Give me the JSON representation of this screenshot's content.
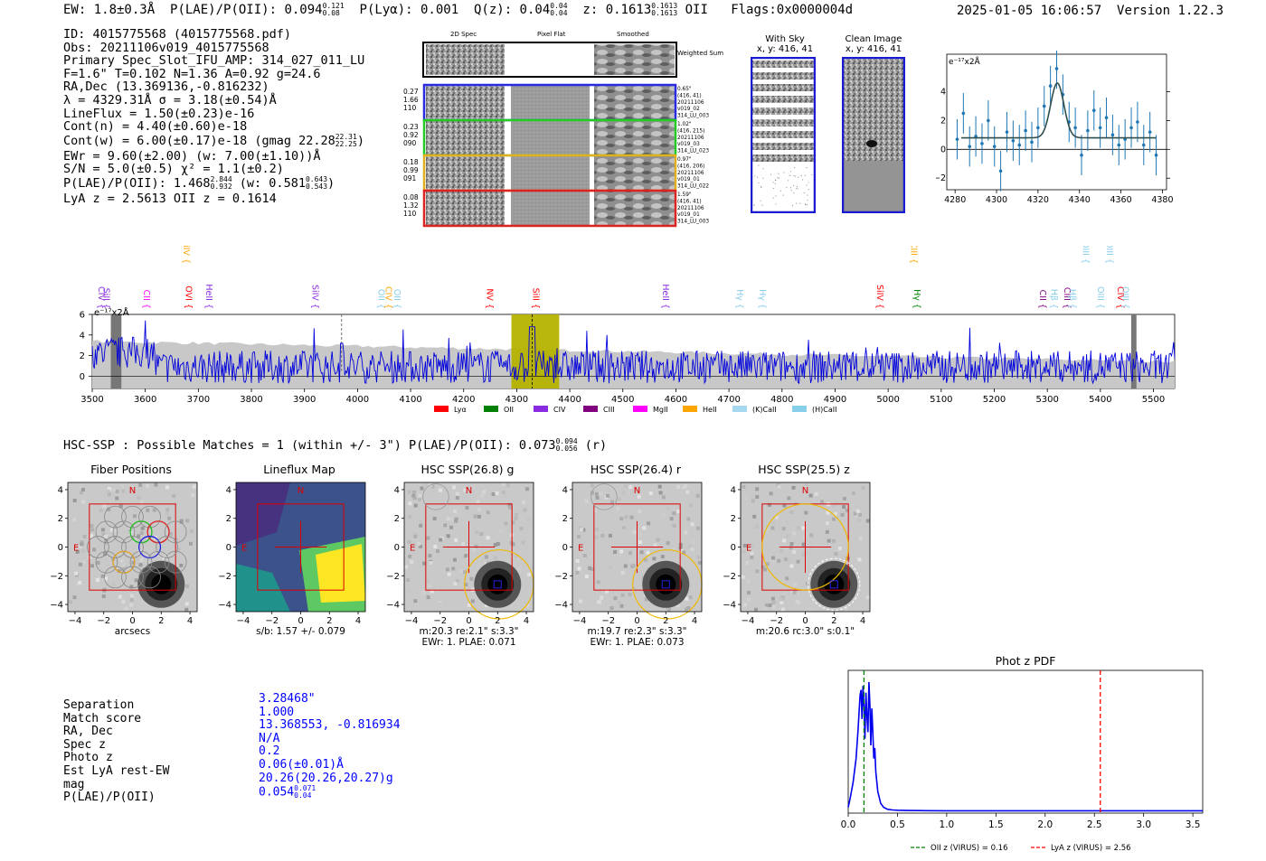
{
  "header": {
    "ew": "EW: 1.8±0.3Å",
    "plae_label": "P(LAE)/P(OII): 0.094",
    "plae_hi": "0.121",
    "plae_lo": "0.08",
    "plya": "P(Lyα): 0.001",
    "qz_label": "Q(z): 0.04",
    "qz_hi": "0.04",
    "qz_lo": "0.04",
    "z_label": "z: 0.1613",
    "z_hi": "0.1613",
    "z_lo": "0.1613",
    "z_line": "OII",
    "flags": "Flags:0x0000004d",
    "timestamp": "2025-01-05 16:06:57",
    "version": "Version 1.22.3"
  },
  "info": {
    "id": "ID: 4015775568 (4015775568.pdf)",
    "obs": "Obs: 20211106v019_4015775568",
    "primary": "Primary Spec_Slot_IFU_AMP: 314_027_011_LU",
    "params": "F=1.6\"  T=0.102  N=1.36  A=0.92  g=24.6",
    "radec": "RA,Dec (13.369136,-0.816232)",
    "lambda": "λ = 4329.31Å  σ = 3.18(±0.54)Å",
    "lineflux": "LineFlux = 1.50(±0.23)e-16",
    "contn": "Cont(n) = 4.40(±0.60)e-18",
    "contw": "Cont(w) = 6.00(±0.17)e-18 (gmag 22.28",
    "contw_hi": "22.31",
    "contw_lo": "22.25",
    "contw_end": ")",
    "ewr": "EWr = 9.60(±2.00) (w: 7.00(±1.10))Å",
    "sn": "S/N = 5.0(±0.5)  χ² = 1.1(±0.2)",
    "plae": "P(LAE)/P(OII): 1.468",
    "plae_hi": "2.844",
    "plae_lo": "0.932",
    "plae_w": "(w: 0.581",
    "plae_w_hi": "0.643",
    "plae_w_lo": "0.543",
    "plae_w_end": ")",
    "lya": "LyA z = 2.5613  OII z = 0.1614"
  },
  "cutouts": {
    "col_labels": [
      "2D Spec",
      "Pixel Flat",
      "Smoothed"
    ],
    "weighted_sum": "Weighted Sum",
    "rows": [
      {
        "vals": [
          "0.27",
          "1.66",
          "110"
        ],
        "meta": [
          "0.65\"",
          "(416, 41)",
          "20211106",
          "v019_02",
          "314_LU_003"
        ],
        "color": "#2a2ae0"
      },
      {
        "vals": [
          "0.23",
          "0.92",
          "090"
        ],
        "meta": [
          "1.02\"",
          "(416, 215)",
          "20211106",
          "v019_03",
          "314_LU_023"
        ],
        "color": "#22cc22"
      },
      {
        "vals": [
          "0.18",
          "0.99",
          "091"
        ],
        "meta": [
          "0.97\"",
          "(416, 206)",
          "20211106",
          "v019_01",
          "314_LU_022"
        ],
        "color": "#e0b020"
      },
      {
        "vals": [
          "0.08",
          "1.32",
          "110"
        ],
        "meta": [
          "1.59\"",
          "(416, 41)",
          "20211106",
          "v019_01",
          "314_LU_003"
        ],
        "color": "#dd2222"
      }
    ],
    "with_sky": "With Sky",
    "with_sky_xy": "x, y: 416, 41",
    "clean": "Clean Image",
    "clean_xy": "x, y: 416, 41"
  },
  "zoom_plot": {
    "unit": "e⁻¹⁷x2Å",
    "x_ticks": [
      "4280",
      "4300",
      "4320",
      "4340",
      "4360",
      "4380"
    ],
    "y_ticks": [
      "4",
      "2",
      "0",
      "−2"
    ]
  },
  "spectrum": {
    "unit": "e⁻¹⁷x2Å",
    "x_ticks": [
      "3500",
      "3600",
      "3700",
      "3800",
      "3900",
      "4000",
      "4100",
      "4200",
      "4300",
      "4400",
      "4500",
      "4600",
      "4700",
      "4800",
      "4900",
      "5000",
      "5100",
      "5200",
      "5300",
      "5400",
      "5500"
    ],
    "y_ticks": [
      "6",
      "4",
      "2",
      "0"
    ],
    "lines": [
      {
        "label": "CIV",
        "color": "#8a2be2"
      },
      {
        "label": "SiII",
        "color": "#8a2be2"
      },
      {
        "label": "CII",
        "color": "#ff00ff"
      },
      {
        "label": "SiIV",
        "color": "#ffa500"
      },
      {
        "label": "OVI",
        "color": "#ff0000"
      },
      {
        "label": "HeII",
        "color": "#8a2be2"
      },
      {
        "label": "SiIV",
        "color": "#8a2be2"
      },
      {
        "label": "OII",
        "color": "#87ceeb"
      },
      {
        "label": "CIV",
        "color": "#ffa500"
      },
      {
        "label": "OII",
        "color": "#87ceeb"
      },
      {
        "label": "NV",
        "color": "#ff0000"
      },
      {
        "label": "SiII",
        "color": "#ff0000"
      },
      {
        "label": "HeII",
        "color": "#8a2be2"
      },
      {
        "label": "Hγ",
        "color": "#87ceeb"
      },
      {
        "label": "Hγ",
        "color": "#87ceeb"
      },
      {
        "label": "SiIV",
        "color": "#ff0000"
      },
      {
        "label": "CIII",
        "color": "#ffa500"
      },
      {
        "label": "Hγ",
        "color": "#008000"
      },
      {
        "label": "CII",
        "color": "#800080"
      },
      {
        "label": "Hβ",
        "color": "#87ceeb"
      },
      {
        "label": "CIII",
        "color": "#800080"
      },
      {
        "label": "Hβ",
        "color": "#87ceeb"
      },
      {
        "label": "OIII",
        "color": "#87ceeb"
      },
      {
        "label": "OIII",
        "color": "#87ceeb"
      },
      {
        "label": "OIII",
        "color": "#87ceeb"
      },
      {
        "label": "CIV",
        "color": "#ff0000"
      },
      {
        "label": "OIII",
        "color": "#87ceeb"
      }
    ],
    "legend": [
      {
        "label": "Lyα",
        "color": "#ff0000"
      },
      {
        "label": "OII",
        "color": "#008000"
      },
      {
        "label": "CIV",
        "color": "#8a2be2"
      },
      {
        "label": "CIII",
        "color": "#800080"
      },
      {
        "label": "MgII",
        "color": "#ff00ff"
      },
      {
        "label": "HeII",
        "color": "#ffa500"
      },
      {
        "label": "(K)CaII",
        "color": "#a6d8f0"
      },
      {
        "label": "(H)CaII",
        "color": "#87ceeb"
      }
    ]
  },
  "hsc": {
    "title": "HSC-SSP : Possible Matches = 1 (within +/- 3\")  P(LAE)/P(OII): 0.073",
    "title_hi": "0.094",
    "title_lo": "0.056",
    "title_end": "(r)",
    "panels": [
      {
        "title": "Fiber Positions",
        "cap1": "arcsecs",
        "cap2": ""
      },
      {
        "title": "Lineflux Map",
        "cap1": "s/b: 1.57 +/- 0.079",
        "cap2": ""
      },
      {
        "title": "HSC SSP(26.8) g",
        "cap1": "m:20.3  re:2.1\"  s:3.3\"",
        "cap2": "EWr: 1. PLAE: 0.071"
      },
      {
        "title": "HSC SSP(26.4) r",
        "cap1": "m:19.7  re:2.3\"  s:3.3\"",
        "cap2": "EWr: 1. PLAE: 0.073"
      },
      {
        "title": "HSC SSP(25.5) z",
        "cap1": "m:20.6 rc:3.0\"  s:0.1\"",
        "cap2": ""
      }
    ],
    "axis_ticks": [
      "−4",
      "−2",
      "0",
      "2",
      "4"
    ],
    "n_label": "N",
    "e_label": "E"
  },
  "match": {
    "labels": [
      "Separation",
      "Match score",
      "RA, Dec",
      "Spec z",
      "Photo z",
      "Est LyA rest-EW",
      "mag",
      "P(LAE)/P(OII)"
    ],
    "values": [
      "3.28468\"",
      "1.000",
      "13.368553, -0.816934",
      "N/A",
      "0.2",
      "0.06(±0.01)Å",
      "20.26(20.26,20.27)g",
      "0.054"
    ],
    "plae_hi": "0.071",
    "plae_lo": "0.04"
  },
  "chart_data": [
    {
      "type": "line",
      "title": "Phot z PDF",
      "xlabel": "",
      "ylabel": "",
      "xlim": [
        0,
        3.6
      ],
      "x_ticks": [
        "0.0",
        "0.5",
        "1.0",
        "1.5",
        "2.0",
        "2.5",
        "3.0",
        "3.5"
      ],
      "x": [
        0.0,
        0.02,
        0.05,
        0.08,
        0.1,
        0.12,
        0.13,
        0.14,
        0.15,
        0.16,
        0.17,
        0.18,
        0.19,
        0.2,
        0.21,
        0.22,
        0.23,
        0.24,
        0.25,
        0.26,
        0.27,
        0.28,
        0.3,
        0.33,
        0.36,
        0.4,
        0.45,
        0.5,
        0.6,
        0.8,
        1.0,
        1.5,
        2.0,
        2.5,
        3.0,
        3.6
      ],
      "y": [
        0.03,
        0.1,
        0.22,
        0.4,
        0.62,
        0.88,
        0.92,
        0.7,
        0.95,
        0.8,
        0.55,
        0.9,
        0.72,
        0.6,
        0.98,
        0.8,
        0.5,
        0.78,
        0.6,
        0.4,
        0.48,
        0.3,
        0.15,
        0.06,
        0.03,
        0.015,
        0.01,
        0.008,
        0.006,
        0.005,
        0.004,
        0.004,
        0.004,
        0.004,
        0.004,
        0.004
      ],
      "vlines": [
        {
          "x": 0.16,
          "label": "OII z (VIRUS) = 0.16",
          "color": "#008000"
        },
        {
          "x": 2.56,
          "label": "LyA z (VIRUS) = 2.56",
          "color": "#ff0000"
        }
      ]
    },
    {
      "type": "line",
      "title": "",
      "xlim": [
        4276,
        4382
      ],
      "ylim": [
        -2.8,
        6.6
      ],
      "x": [
        4281,
        4284,
        4287,
        4290,
        4293,
        4296,
        4299,
        4302,
        4305,
        4308,
        4311,
        4314,
        4317,
        4320,
        4323,
        4326,
        4329,
        4332,
        4335,
        4338,
        4341,
        4344,
        4347,
        4350,
        4353,
        4356,
        4359,
        4362,
        4365,
        4368,
        4371,
        4374,
        4377
      ],
      "y": [
        0.7,
        2.5,
        0.2,
        0.9,
        0.4,
        2.0,
        0.2,
        -1.5,
        1.2,
        0.6,
        0.3,
        1.3,
        0.5,
        1.5,
        3.0,
        4.4,
        5.6,
        3.8,
        1.9,
        1.5,
        -0.4,
        1.3,
        2.7,
        1.5,
        2.2,
        1.0,
        0.3,
        0.7,
        1.5,
        1.9,
        0.3,
        1.2,
        -0.4
      ],
      "err": 1.4,
      "fit": {
        "continuum": 0.8,
        "peak": 4.6,
        "center": 4329.3,
        "sigma": 3.2
      }
    },
    {
      "type": "line",
      "title": "",
      "xlim": [
        3500,
        5540
      ],
      "ylim": [
        -1.2,
        6.0
      ],
      "highlight_band": [
        4290,
        4380
      ],
      "emission_line": 4329.3,
      "secondary_line": 3970
    }
  ]
}
